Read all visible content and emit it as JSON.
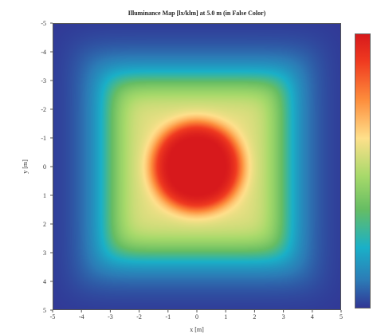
{
  "chart_data": {
    "type": "heatmap",
    "title": "Illuminance Map [lx/klm] at 5.0 m (in False Color)",
    "xlabel": "x [m]",
    "ylabel": "y [m]",
    "xlim": [
      -5,
      5
    ],
    "ylim": [
      -5,
      5
    ],
    "x_ticks": [
      "-5",
      "-4",
      "-3",
      "-2",
      "-1",
      "0",
      "1",
      "2",
      "3",
      "4",
      "5"
    ],
    "y_ticks": [
      "-5",
      "-4",
      "-3",
      "-2",
      "-1",
      "0",
      "1",
      "2",
      "3",
      "4",
      "5"
    ],
    "grid": false,
    "colormap": [
      "#313695",
      "#2c7bb6",
      "#1ab0c8",
      "#66bd63",
      "#a6d96a",
      "#fee08b",
      "#fd8d3c",
      "#f03b20",
      "#d7191c"
    ],
    "colorbar": true,
    "field": {
      "shape": "rounded-square plateau with circular central peak",
      "center": [
        0,
        0
      ],
      "plateau_half_width": 3.0,
      "peak_radius": 1.5,
      "levels": {
        "background": 0.0,
        "plateau": 0.5,
        "peak": 1.0
      }
    }
  }
}
